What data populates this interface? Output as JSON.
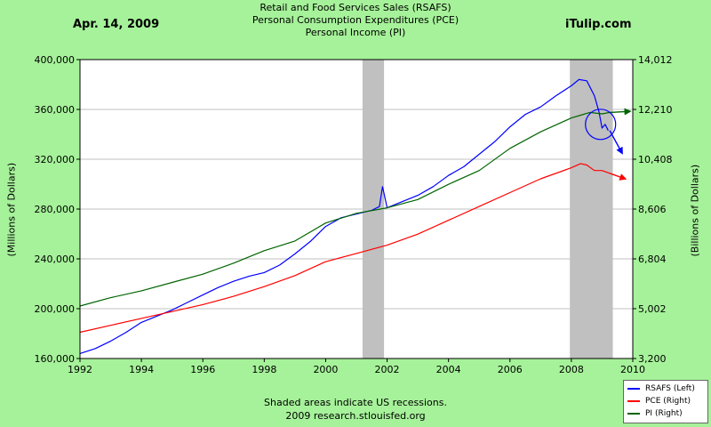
{
  "header": {
    "date": "Apr. 14, 2009",
    "brand": "iTulip.com"
  },
  "footer": {
    "note": "Shaded areas indicate US recessions.",
    "source": "2009 research.stlouisfed.org"
  },
  "colors": {
    "background": "#a6f29a",
    "rsafs": "#0000ff",
    "pce": "#ff0000",
    "pi": "#006400",
    "recession": "#c0c0c0",
    "grid": "#c0c0c0"
  },
  "chart_data": {
    "type": "line",
    "title": [
      "Retail and Food Services Sales (RSAFS)",
      "Personal Consumption Expenditures (PCE)",
      "Personal Income (PI)"
    ],
    "xlabel": "",
    "ylabel_left": "(Millions of Dollars)",
    "ylabel_right": "(Billions of Dollars)",
    "xlim": [
      1992,
      2010
    ],
    "ylim_left": [
      160000,
      400000
    ],
    "ylim_right": [
      3200,
      14012
    ],
    "x_ticks": [
      "1992",
      "1994",
      "1996",
      "1998",
      "2000",
      "2002",
      "2004",
      "2006",
      "2008",
      "2010"
    ],
    "y_ticks_left": [
      "160,000",
      "200,000",
      "240,000",
      "280,000",
      "320,000",
      "360,000",
      "400,000"
    ],
    "y_ticks_right": [
      "3,200",
      "5,002",
      "6,804",
      "8,606",
      "10,408",
      "12,210",
      "14,012"
    ],
    "grid": true,
    "legend_position": "bottom-right",
    "recessions": [
      [
        2001.2,
        2001.9
      ],
      [
        2007.95,
        2009.35
      ]
    ],
    "series": [
      {
        "name": "RSAFS (Left)",
        "axis": "left",
        "x": [
          1992,
          1992.5,
          1993,
          1993.5,
          1994,
          1994.5,
          1995,
          1995.5,
          1996,
          1996.5,
          1997,
          1997.5,
          1998,
          1998.5,
          1999,
          1999.5,
          2000,
          2000.5,
          2001,
          2001.5,
          2001.75,
          2001.85,
          2002,
          2002.5,
          2003,
          2003.5,
          2004,
          2004.5,
          2005,
          2005.5,
          2006,
          2006.5,
          2007,
          2007.5,
          2008,
          2008.25,
          2008.5,
          2008.75,
          2008.9,
          2009,
          2009.1,
          2009.2
        ],
        "values": [
          164000,
          168000,
          174000,
          181000,
          189000,
          194000,
          199000,
          205000,
          211000,
          217000,
          222000,
          226000,
          229000,
          235000,
          244000,
          254000,
          266000,
          273000,
          276000,
          279000,
          282000,
          298000,
          281000,
          286000,
          291000,
          298000,
          307000,
          314000,
          324000,
          334000,
          346000,
          356000,
          362000,
          371000,
          379000,
          384000,
          383000,
          371000,
          358000,
          345000,
          348000,
          343000
        ]
      },
      {
        "name": "PCE (Right)",
        "axis": "right",
        "x": [
          1992,
          1993,
          1994,
          1995,
          1996,
          1997,
          1998,
          1999,
          2000,
          2001,
          2002,
          2003,
          2004,
          2005,
          2006,
          2007,
          2008,
          2008.3,
          2008.5,
          2008.75,
          2009,
          2009.25
        ],
        "values": [
          4150,
          4400,
          4650,
          4900,
          5150,
          5450,
          5800,
          6200,
          6700,
          7000,
          7300,
          7700,
          8200,
          8700,
          9200,
          9700,
          10100,
          10250,
          10200,
          10000,
          10000,
          9900
        ]
      },
      {
        "name": "PI (Right)",
        "axis": "right",
        "x": [
          1992,
          1993,
          1994,
          1995,
          1996,
          1997,
          1998,
          1999,
          2000,
          2001,
          2002,
          2003,
          2004,
          2005,
          2006,
          2007,
          2008,
          2008.3,
          2008.6,
          2009,
          2009.25
        ],
        "values": [
          5100,
          5400,
          5650,
          5950,
          6250,
          6650,
          7100,
          7450,
          8100,
          8450,
          8650,
          8950,
          9500,
          10000,
          10800,
          11400,
          11900,
          12000,
          12100,
          12050,
          12100
        ]
      }
    ],
    "annotations": [
      {
        "type": "arrow",
        "series": "RSAFS (Left)",
        "from": [
          2009.25,
          343000
        ],
        "to": [
          2009.65,
          325000
        ]
      },
      {
        "type": "arrow",
        "series": "PCE (Right)",
        "from": [
          2009.25,
          9900
        ],
        "to": [
          2009.75,
          9700
        ]
      },
      {
        "type": "arrow",
        "series": "PI (Right)",
        "from": [
          2009.25,
          12100
        ],
        "to": [
          2009.9,
          12140
        ]
      },
      {
        "type": "circle",
        "series": "RSAFS (Left)",
        "center": [
          2008.95,
          348000
        ]
      }
    ]
  }
}
